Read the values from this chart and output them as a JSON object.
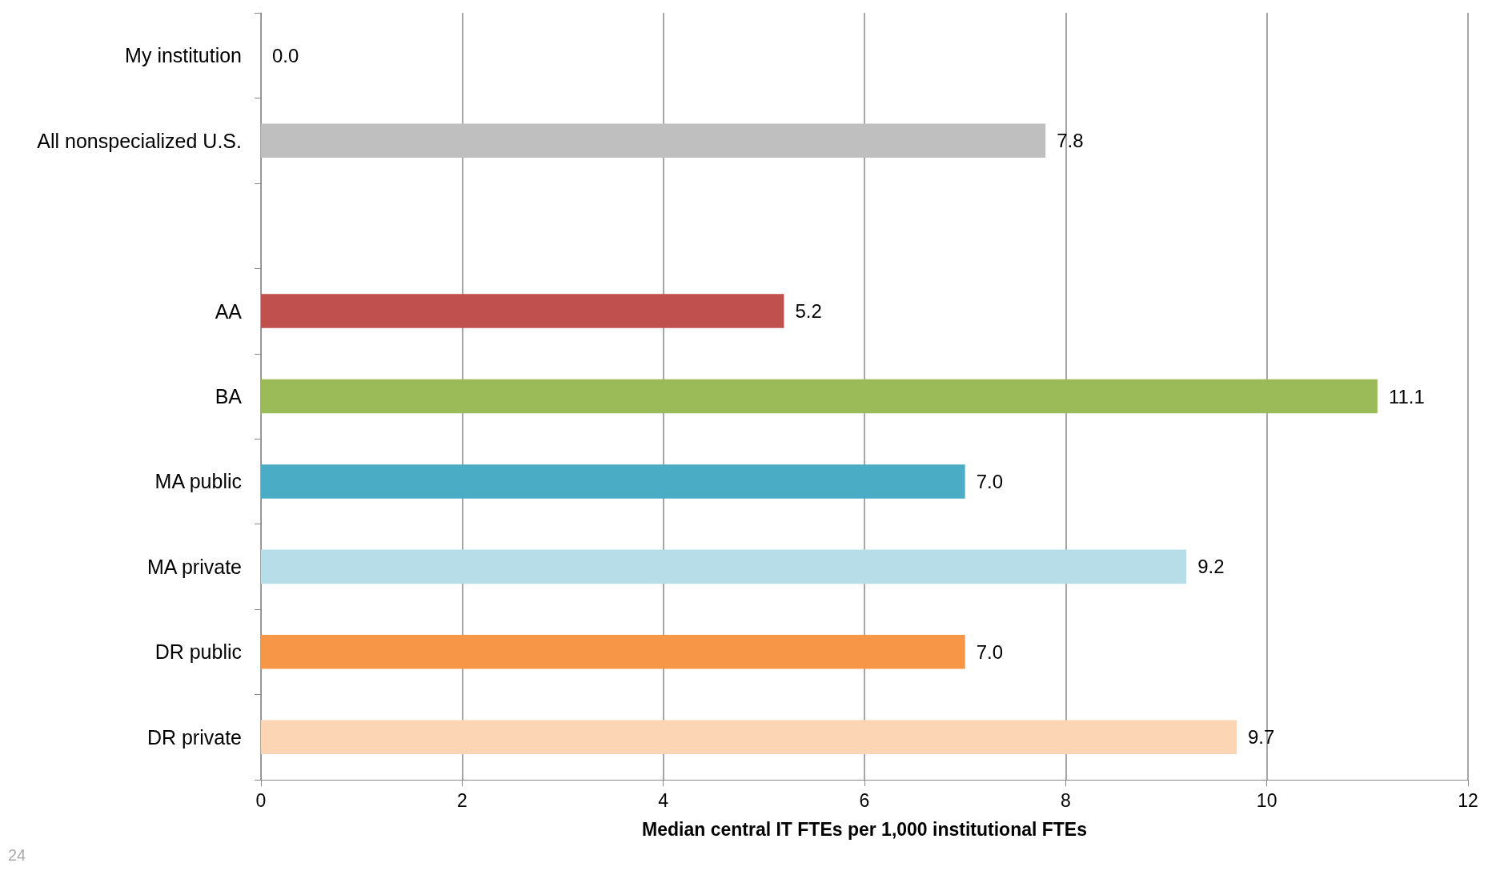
{
  "chart_data": {
    "type": "bar",
    "orientation": "horizontal",
    "xlabel": "Median central IT FTEs per 1,000 institutional FTEs",
    "categories": [
      "My institution",
      "All nonspecialized U.S.",
      null,
      "AA",
      "BA",
      "MA public",
      "MA private",
      "DR public",
      "DR private"
    ],
    "values": [
      0.0,
      7.8,
      null,
      5.2,
      11.1,
      7.0,
      9.2,
      7.0,
      9.7
    ],
    "value_labels": [
      "0.0",
      "7.8",
      null,
      "5.2",
      "11.1",
      "7.0",
      "9.2",
      "7.0",
      "9.7"
    ],
    "colors": [
      "#bfbfbf",
      "#bfbfbf",
      "#bfbfbf",
      "#c0504d",
      "#9bbb59",
      "#4bacc6",
      "#b7dee8",
      "#f79646",
      "#fcd5b5"
    ],
    "xlim": [
      0,
      12
    ],
    "xticks": [
      0,
      2,
      4,
      6,
      8,
      10,
      12
    ],
    "grid": "x",
    "annotations": [
      "24"
    ]
  }
}
